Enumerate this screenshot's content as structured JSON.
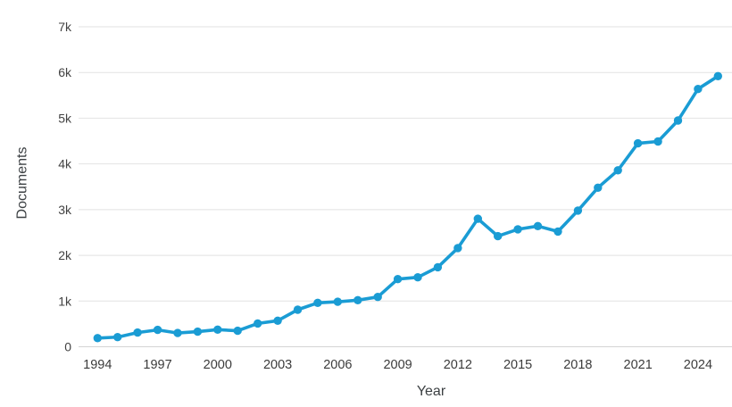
{
  "chart_data": {
    "type": "line",
    "title": "",
    "xlabel": "Year",
    "ylabel": "Documents",
    "x": [
      1994,
      1995,
      1996,
      1997,
      1998,
      1999,
      2000,
      2001,
      2002,
      2003,
      2004,
      2005,
      2006,
      2007,
      2008,
      2009,
      2010,
      2011,
      2012,
      2013,
      2014,
      2015,
      2016,
      2017,
      2018,
      2019,
      2020,
      2021,
      2022,
      2023,
      2024,
      2025
    ],
    "series": [
      {
        "name": "Documents",
        "values": [
          190,
          210,
          310,
          370,
          300,
          330,
          375,
          350,
          510,
          570,
          810,
          960,
          985,
          1020,
          1090,
          1480,
          1520,
          1740,
          2160,
          2800,
          2420,
          2570,
          2640,
          2520,
          2980,
          3480,
          3860,
          4450,
          4490,
          4950,
          5640,
          5920
        ]
      }
    ],
    "xlim": [
      1994,
      2025
    ],
    "ylim": [
      0,
      7000
    ],
    "xtick_labels": [
      "1994",
      "1997",
      "2000",
      "2003",
      "2006",
      "2009",
      "2012",
      "2015",
      "2018",
      "2021",
      "2024"
    ],
    "ytick_values": [
      0,
      1000,
      2000,
      3000,
      4000,
      5000,
      6000,
      7000
    ],
    "ytick_labels": [
      "0",
      "1k",
      "2k",
      "3k",
      "4k",
      "5k",
      "6k",
      "7k"
    ],
    "grid": "horizontal",
    "legend": "none",
    "marker": "circle",
    "colors": {
      "line": "#1a9cd4",
      "marker": "#1a9cd4",
      "grid": "#e2e2e2",
      "zero_line": "#d4d4d4",
      "tick_text": "#424242",
      "axis_title_text": "#3c4043",
      "background": "#ffffff"
    }
  }
}
